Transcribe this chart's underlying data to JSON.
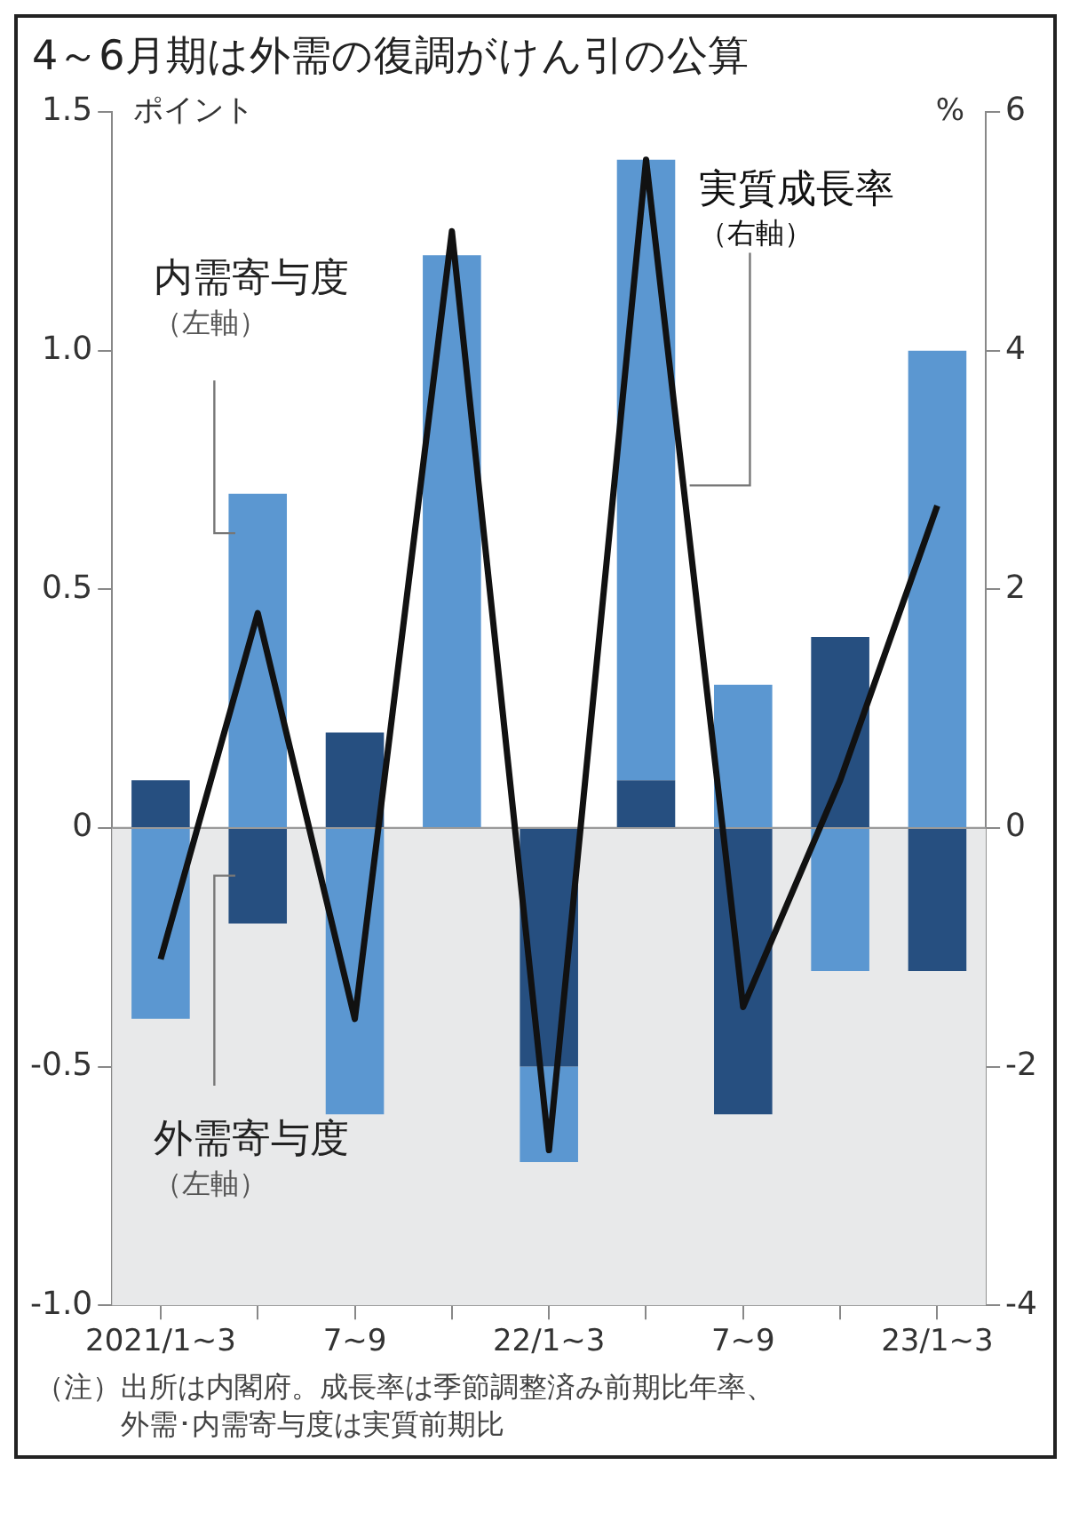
{
  "chart_data": {
    "type": "bar",
    "title": "4～6月期は外需の復調がけん引の公算",
    "ylabel": "ポイント",
    "y2label": "%",
    "categories": [
      "2021/1~3",
      null,
      "7~9",
      null,
      "22/1~3",
      null,
      "7~9",
      null,
      "23/1~3"
    ],
    "series": [
      {
        "name": "外需寄与度（左軸）",
        "color": "#264f80",
        "values": [
          0.1,
          -0.2,
          0.2,
          0,
          -0.5,
          0.1,
          -0.6,
          0.4,
          -0.3
        ]
      },
      {
        "name": "内需寄与度（左軸）",
        "color": "#5b97d1",
        "values": [
          -0.4,
          0.7,
          -0.6,
          1.2,
          -0.2,
          1.3,
          0.3,
          -0.3,
          1.0
        ]
      },
      {
        "name": "実質成長率（右軸）",
        "type": "line",
        "axis": "y2",
        "color": "#111111",
        "values": [
          -1.1,
          1.8,
          -1.6,
          5.0,
          -2.7,
          5.6,
          -1.5,
          0.4,
          2.7
        ]
      }
    ],
    "stacked": true,
    "ylim": [
      -1.0,
      1.5
    ],
    "yticks": [
      {
        "value": -1.0,
        "label": "-1.0"
      },
      -0.5,
      0,
      0.5,
      {
        "value": 1.0,
        "label": "1.0"
      },
      1.5
    ],
    "y2lim": [
      -4,
      6
    ],
    "y2ticks": [
      -4,
      -2,
      0,
      2,
      4,
      6
    ],
    "bands": [
      {
        "axis": "y",
        "from": -1.0,
        "to": 0,
        "color": "#e8e9ea"
      }
    ],
    "ref_lines": [
      {
        "axis": "y",
        "value": 0,
        "color": "#9a9a9a"
      }
    ],
    "grid": false,
    "legend": false,
    "marker": "none",
    "line_style": "solid",
    "annotations": [
      "（注）出所は内閣府。成長率は季節調整済み前期比年率、外需･内需寄与度は実質前期比"
    ]
  }
}
